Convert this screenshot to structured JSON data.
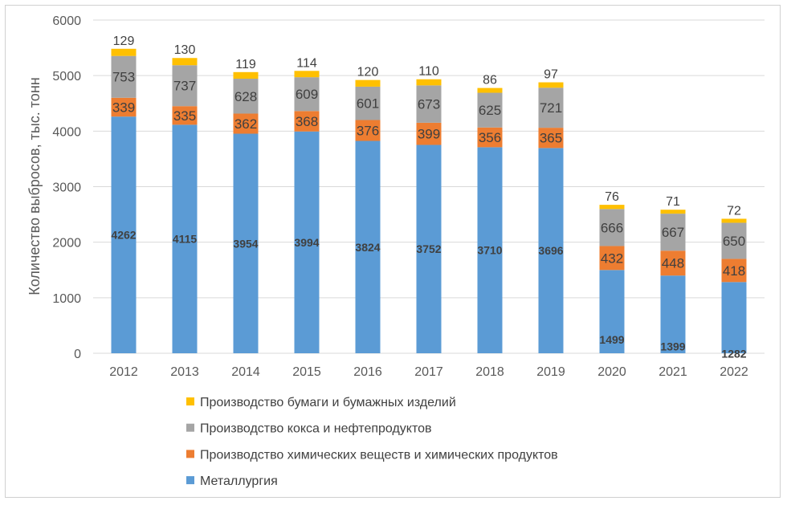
{
  "chart_data": {
    "type": "bar",
    "stacked": true,
    "ylabel": "Количество выбросов, тыс. тонн",
    "xlabel": "",
    "ylim": [
      0,
      6000
    ],
    "yticks": [
      0,
      1000,
      2000,
      3000,
      4000,
      5000,
      6000
    ],
    "grid": true,
    "legend_position": "bottom",
    "categories": [
      "2012",
      "2013",
      "2014",
      "2015",
      "2016",
      "2017",
      "2018",
      "2019",
      "2020",
      "2021",
      "2022"
    ],
    "series": [
      {
        "name": "Металлургия",
        "color": "#5b9bd5",
        "values": [
          4262,
          4115,
          3954,
          3994,
          3824,
          3752,
          3710,
          3696,
          1499,
          1399,
          1282
        ]
      },
      {
        "name": "Производство химических веществ и химических продуктов",
        "color": "#ed7d31",
        "values": [
          339,
          335,
          362,
          368,
          376,
          399,
          356,
          365,
          432,
          448,
          418
        ]
      },
      {
        "name": "Производство кокса и нефтепродуктов",
        "color": "#a5a5a5",
        "values": [
          753,
          737,
          628,
          609,
          601,
          673,
          625,
          721,
          666,
          667,
          650
        ]
      },
      {
        "name": "Производство бумаги и бумажных изделий",
        "color": "#ffc000",
        "values": [
          129,
          130,
          119,
          114,
          120,
          110,
          86,
          97,
          76,
          71,
          72
        ]
      }
    ]
  }
}
